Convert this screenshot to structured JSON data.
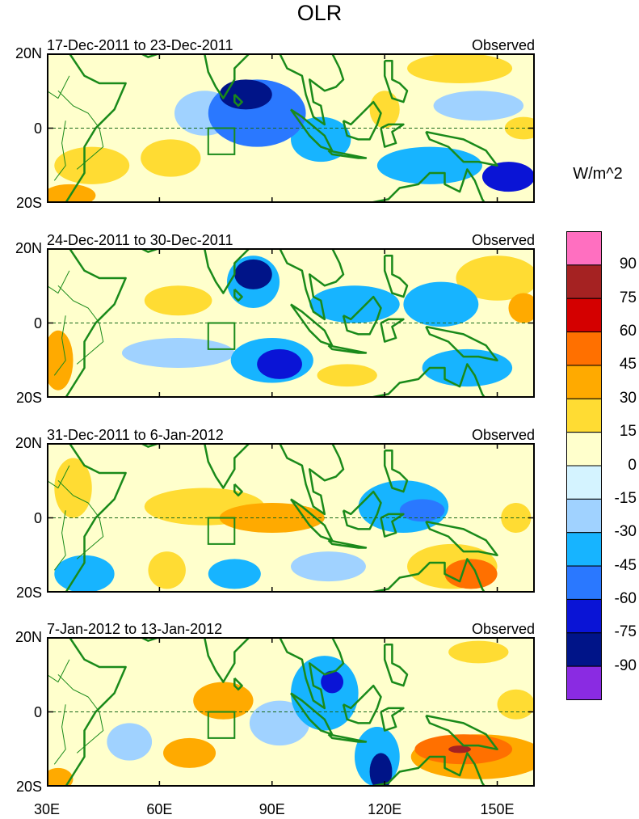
{
  "chart_data": {
    "type": "heatmap",
    "title": "OLR",
    "units": "W/m^2",
    "x_ticks": [
      "30E",
      "60E",
      "90E",
      "120E",
      "150E"
    ],
    "x_tick_values": [
      30,
      60,
      90,
      120,
      150
    ],
    "xlim": [
      30,
      160
    ],
    "y_ticks": [
      "20N",
      "0",
      "20S"
    ],
    "y_tick_values": [
      20,
      0,
      -20
    ],
    "ylim": [
      -20,
      20
    ],
    "colorbar": {
      "levels": [
        "90",
        "75",
        "60",
        "45",
        "30",
        "15",
        "0",
        "-15",
        "-30",
        "-45",
        "-60",
        "-75",
        "-90"
      ],
      "colors": [
        "#ff6fc0",
        "#a52222",
        "#d40000",
        "#ff7000",
        "#ffaa00",
        "#ffdc33",
        "#ffffcc",
        "#d4f3ff",
        "#a0d2ff",
        "#17b4ff",
        "#2a78ff",
        "#0a14d6",
        "#001488",
        "#8a2be2"
      ]
    },
    "region_box": {
      "lon": [
        73,
        80
      ],
      "lat": [
        -7,
        0
      ]
    },
    "panels": [
      {
        "left_title": "17-Dec-2011 to 23-Dec-2011",
        "right_title": "Observed",
        "anomalies": [
          {
            "lon": 83,
            "lat": 9,
            "value": -80,
            "rx": 7,
            "ry": 4
          },
          {
            "lon": 86,
            "lat": 4,
            "value": -50,
            "rx": 13,
            "ry": 9
          },
          {
            "lon": 103,
            "lat": -3,
            "value": -35,
            "rx": 8,
            "ry": 6
          },
          {
            "lon": 132,
            "lat": -10,
            "value": -45,
            "rx": 14,
            "ry": 5
          },
          {
            "lon": 153,
            "lat": -13,
            "value": -75,
            "rx": 7,
            "ry": 4
          },
          {
            "lon": 145,
            "lat": 6,
            "value": -30,
            "rx": 12,
            "ry": 4
          },
          {
            "lon": 72,
            "lat": 4,
            "value": -20,
            "rx": 8,
            "ry": 6
          },
          {
            "lon": 140,
            "lat": 16,
            "value": 20,
            "rx": 14,
            "ry": 4
          },
          {
            "lon": 157,
            "lat": 0,
            "value": 25,
            "rx": 5,
            "ry": 3
          },
          {
            "lon": 42,
            "lat": -10,
            "value": 15,
            "rx": 10,
            "ry": 5
          },
          {
            "lon": 36,
            "lat": -18,
            "value": 35,
            "rx": 7,
            "ry": 3
          },
          {
            "lon": 63,
            "lat": -8,
            "value": 18,
            "rx": 8,
            "ry": 5
          },
          {
            "lon": 120,
            "lat": 5,
            "value": 18,
            "rx": 4,
            "ry": 5
          }
        ]
      },
      {
        "left_title": "24-Dec-2011 to 30-Dec-2011",
        "right_title": "Observed",
        "anomalies": [
          {
            "lon": 85,
            "lat": 13,
            "value": -85,
            "rx": 5,
            "ry": 4
          },
          {
            "lon": 85,
            "lat": 11,
            "value": -45,
            "rx": 7,
            "ry": 7
          },
          {
            "lon": 92,
            "lat": -11,
            "value": -75,
            "rx": 6,
            "ry": 4
          },
          {
            "lon": 90,
            "lat": -10,
            "value": -40,
            "rx": 11,
            "ry": 6
          },
          {
            "lon": 112,
            "lat": 5,
            "value": -45,
            "rx": 12,
            "ry": 5
          },
          {
            "lon": 135,
            "lat": 5,
            "value": -35,
            "rx": 10,
            "ry": 6
          },
          {
            "lon": 142,
            "lat": -12,
            "value": -40,
            "rx": 12,
            "ry": 5
          },
          {
            "lon": 65,
            "lat": -8,
            "value": -30,
            "rx": 15,
            "ry": 4
          },
          {
            "lon": 150,
            "lat": 12,
            "value": 25,
            "rx": 11,
            "ry": 6
          },
          {
            "lon": 157,
            "lat": 4,
            "value": 30,
            "rx": 4,
            "ry": 4
          },
          {
            "lon": 65,
            "lat": 6,
            "value": 18,
            "rx": 9,
            "ry": 4
          },
          {
            "lon": 110,
            "lat": -14,
            "value": 18,
            "rx": 8,
            "ry": 3
          },
          {
            "lon": 33,
            "lat": -10,
            "value": 30,
            "rx": 4,
            "ry": 8
          }
        ]
      },
      {
        "left_title": "31-Dec-2011 to 6-Jan-2012",
        "right_title": "Observed",
        "anomalies": [
          {
            "lon": 90,
            "lat": 0,
            "value": 35,
            "rx": 14,
            "ry": 4
          },
          {
            "lon": 72,
            "lat": 3,
            "value": 22,
            "rx": 16,
            "ry": 5
          },
          {
            "lon": 143,
            "lat": -15,
            "value": 50,
            "rx": 7,
            "ry": 4
          },
          {
            "lon": 138,
            "lat": -13,
            "value": 25,
            "rx": 12,
            "ry": 6
          },
          {
            "lon": 130,
            "lat": 2,
            "value": -55,
            "rx": 6,
            "ry": 3
          },
          {
            "lon": 125,
            "lat": 3,
            "value": -35,
            "rx": 12,
            "ry": 7
          },
          {
            "lon": 80,
            "lat": -15,
            "value": -40,
            "rx": 7,
            "ry": 4
          },
          {
            "lon": 40,
            "lat": -15,
            "value": -35,
            "rx": 8,
            "ry": 5
          },
          {
            "lon": 62,
            "lat": -14,
            "value": 22,
            "rx": 5,
            "ry": 5
          },
          {
            "lon": 105,
            "lat": -13,
            "value": -25,
            "rx": 10,
            "ry": 4
          },
          {
            "lon": 37,
            "lat": 8,
            "value": 20,
            "rx": 5,
            "ry": 8
          },
          {
            "lon": 155,
            "lat": 0,
            "value": 20,
            "rx": 4,
            "ry": 4
          }
        ]
      },
      {
        "left_title": "7-Jan-2012 to 13-Jan-2012",
        "right_title": "Observed",
        "anomalies": [
          {
            "lon": 119,
            "lat": -16,
            "value": -80,
            "rx": 3,
            "ry": 5
          },
          {
            "lon": 118,
            "lat": -12,
            "value": -45,
            "rx": 6,
            "ry": 8
          },
          {
            "lon": 106,
            "lat": 8,
            "value": -70,
            "rx": 3,
            "ry": 3
          },
          {
            "lon": 104,
            "lat": 5,
            "value": -35,
            "rx": 9,
            "ry": 10
          },
          {
            "lon": 141,
            "lat": -10,
            "value": 55,
            "rx": 13,
            "ry": 4
          },
          {
            "lon": 140,
            "lat": -10,
            "value": 80,
            "rx": 3,
            "ry": 1
          },
          {
            "lon": 145,
            "lat": -12,
            "value": 35,
            "rx": 18,
            "ry": 6
          },
          {
            "lon": 77,
            "lat": 3,
            "value": 35,
            "rx": 8,
            "ry": 5
          },
          {
            "lon": 68,
            "lat": -11,
            "value": 35,
            "rx": 7,
            "ry": 4
          },
          {
            "lon": 52,
            "lat": -8,
            "value": -25,
            "rx": 6,
            "ry": 5
          },
          {
            "lon": 145,
            "lat": 16,
            "value": 20,
            "rx": 8,
            "ry": 3
          },
          {
            "lon": 155,
            "lat": 2,
            "value": 25,
            "rx": 5,
            "ry": 4
          },
          {
            "lon": 33,
            "lat": -18,
            "value": 40,
            "rx": 4,
            "ry": 3
          },
          {
            "lon": 92,
            "lat": -3,
            "value": -30,
            "rx": 8,
            "ry": 6
          }
        ]
      }
    ]
  }
}
